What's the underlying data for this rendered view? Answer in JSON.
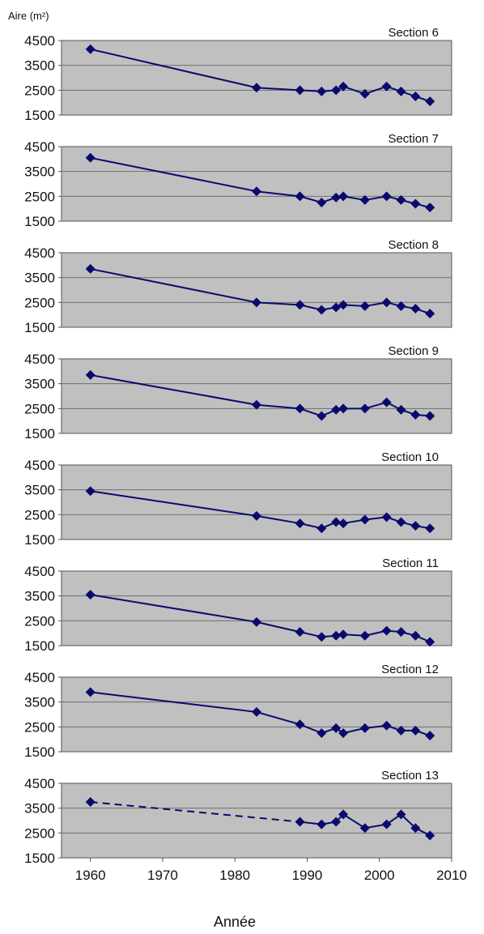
{
  "figure": {
    "y_axis_label": "Aire (m²)",
    "x_axis_label": "Année",
    "x_ticks": [
      "1960",
      "1970",
      "1980",
      "1990",
      "2000",
      "2010"
    ]
  },
  "chart_data": [
    {
      "type": "line",
      "title": "Section 6",
      "x": [
        1960,
        1983,
        1989,
        1992,
        1994,
        1995,
        1998,
        2001,
        2003,
        2005,
        2007
      ],
      "y": [
        4150,
        2600,
        2500,
        2450,
        2500,
        2650,
        2350,
        2650,
        2450,
        2250,
        2050
      ],
      "xlim": [
        1956,
        2010
      ],
      "ylim": [
        1500,
        4500
      ],
      "yticks": [
        1500,
        2500,
        3500,
        4500
      ],
      "grid": true
    },
    {
      "type": "line",
      "title": "Section 7",
      "x": [
        1960,
        1983,
        1989,
        1992,
        1994,
        1995,
        1998,
        2001,
        2003,
        2005,
        2007
      ],
      "y": [
        4050,
        2700,
        2500,
        2250,
        2450,
        2500,
        2350,
        2500,
        2350,
        2200,
        2050
      ],
      "xlim": [
        1956,
        2010
      ],
      "ylim": [
        1500,
        4500
      ],
      "yticks": [
        1500,
        2500,
        3500,
        4500
      ],
      "grid": true
    },
    {
      "type": "line",
      "title": "Section 8",
      "x": [
        1960,
        1983,
        1989,
        1992,
        1994,
        1995,
        1998,
        2001,
        2003,
        2005,
        2007
      ],
      "y": [
        3850,
        2500,
        2400,
        2200,
        2300,
        2400,
        2350,
        2500,
        2350,
        2250,
        2050
      ],
      "xlim": [
        1956,
        2010
      ],
      "ylim": [
        1500,
        4500
      ],
      "yticks": [
        1500,
        2500,
        3500,
        4500
      ],
      "grid": true
    },
    {
      "type": "line",
      "title": "Section 9",
      "x": [
        1960,
        1983,
        1989,
        1992,
        1994,
        1995,
        1998,
        2001,
        2003,
        2005,
        2007
      ],
      "y": [
        3850,
        2650,
        2500,
        2200,
        2450,
        2500,
        2500,
        2750,
        2450,
        2250,
        2200
      ],
      "xlim": [
        1956,
        2010
      ],
      "ylim": [
        1500,
        4500
      ],
      "yticks": [
        1500,
        2500,
        3500,
        4500
      ],
      "grid": true
    },
    {
      "type": "line",
      "title": "Section 10",
      "x": [
        1960,
        1983,
        1989,
        1992,
        1994,
        1995,
        1998,
        2001,
        2003,
        2005,
        2007
      ],
      "y": [
        3450,
        2450,
        2150,
        1950,
        2200,
        2150,
        2300,
        2400,
        2200,
        2050,
        1950
      ],
      "xlim": [
        1956,
        2010
      ],
      "ylim": [
        1500,
        4500
      ],
      "yticks": [
        1500,
        2500,
        3500,
        4500
      ],
      "grid": true
    },
    {
      "type": "line",
      "title": "Section 11",
      "x": [
        1960,
        1983,
        1989,
        1992,
        1994,
        1995,
        1998,
        2001,
        2003,
        2005,
        2007
      ],
      "y": [
        3550,
        2450,
        2050,
        1850,
        1900,
        1950,
        1900,
        2100,
        2050,
        1900,
        1650
      ],
      "xlim": [
        1956,
        2010
      ],
      "ylim": [
        1500,
        4500
      ],
      "yticks": [
        1500,
        2500,
        3500,
        4500
      ],
      "grid": true
    },
    {
      "type": "line",
      "title": "Section 12",
      "x": [
        1960,
        1983,
        1989,
        1992,
        1994,
        1995,
        1998,
        2001,
        2003,
        2005,
        2007
      ],
      "y": [
        3900,
        3100,
        2600,
        2250,
        2450,
        2250,
        2450,
        2550,
        2350,
        2350,
        2150
      ],
      "xlim": [
        1956,
        2010
      ],
      "ylim": [
        1500,
        4500
      ],
      "yticks": [
        1500,
        2500,
        3500,
        4500
      ],
      "grid": true
    },
    {
      "type": "line",
      "title": "Section 13",
      "x": [
        1960,
        1989,
        1992,
        1994,
        1995,
        1998,
        2001,
        2003,
        2005,
        2007
      ],
      "y": [
        3750,
        2950,
        2850,
        2950,
        3250,
        2700,
        2850,
        3250,
        2700,
        2400
      ],
      "dashed_until_x": 1989,
      "xlim": [
        1956,
        2010
      ],
      "ylim": [
        1500,
        4500
      ],
      "yticks": [
        1500,
        2500,
        3500,
        4500
      ],
      "grid": true
    }
  ],
  "colors": {
    "line": "#0a0a6e",
    "plot_bg": "#c0c0c0",
    "grid": "#6e6e6e",
    "frame": "#555555",
    "text": "#111111"
  }
}
